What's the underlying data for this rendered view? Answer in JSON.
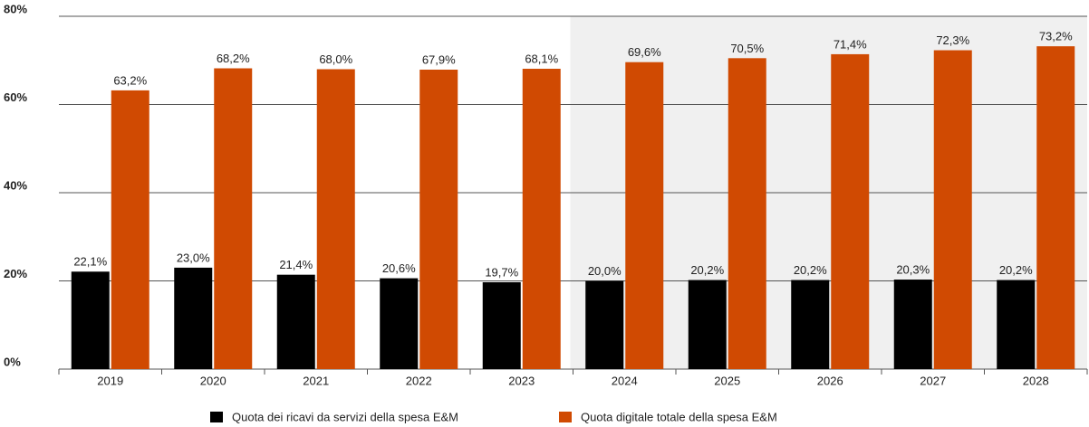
{
  "chart_data": {
    "type": "bar",
    "categories": [
      "2019",
      "2020",
      "2021",
      "2022",
      "2023",
      "2024",
      "2025",
      "2026",
      "2027",
      "2028"
    ],
    "series": [
      {
        "name": "Quota dei ricavi da servizi della spesa E&M",
        "color": "#000000",
        "values": [
          22.1,
          23.0,
          21.4,
          20.6,
          19.7,
          20.0,
          20.2,
          20.2,
          20.3,
          20.2
        ],
        "value_labels": [
          "22,1%",
          "23,0%",
          "21,4%",
          "20,6%",
          "19,7%",
          "20,0%",
          "20,2%",
          "20,2%",
          "20,3%",
          "20,2%"
        ]
      },
      {
        "name": "Quota digitale totale della spesa E&M",
        "color": "#d04a02",
        "values": [
          63.2,
          68.2,
          68.0,
          67.9,
          68.1,
          69.6,
          70.5,
          71.4,
          72.3,
          73.2
        ],
        "value_labels": [
          "63,2%",
          "68,2%",
          "68,0%",
          "67,9%",
          "68,1%",
          "69,6%",
          "70,5%",
          "71,4%",
          "72,3%",
          "73,2%"
        ]
      }
    ],
    "ylim": [
      0,
      80
    ],
    "yticks": [
      {
        "value": 0,
        "label": "0%"
      },
      {
        "value": 20,
        "label": "20%"
      },
      {
        "value": 40,
        "label": "40%"
      },
      {
        "value": 60,
        "label": "60%"
      },
      {
        "value": 80,
        "label": "80%"
      }
    ],
    "grid": true,
    "legend": "bottom"
  }
}
